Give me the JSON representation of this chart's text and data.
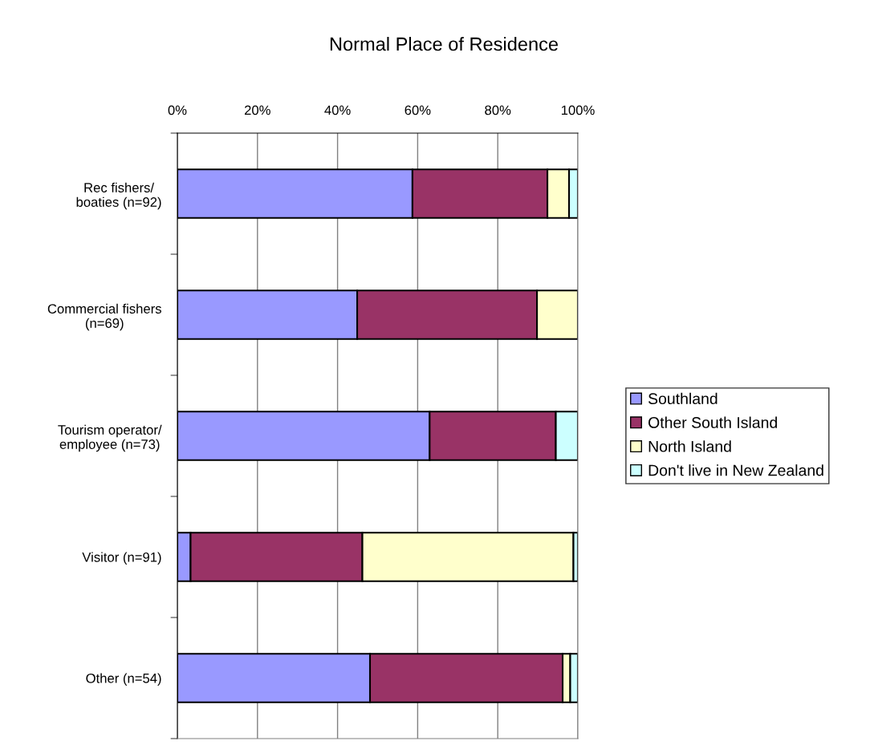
{
  "chart_data": {
    "type": "bar",
    "orientation": "horizontal",
    "stacked": true,
    "title": "Normal Place of Residence",
    "categories": [
      "Rec fishers/\nboaties (n=92)",
      "Commercial fishers\n(n=69)",
      "Tourism operator/\nemployee (n=73)",
      "Visitor (n=91)",
      "Other (n=54)"
    ],
    "series": [
      {
        "name": "Southland",
        "color": "#9999ff",
        "values": [
          58.7,
          44.9,
          63.0,
          3.3,
          48.1
        ]
      },
      {
        "name": "Other South Island",
        "color": "#993366",
        "values": [
          33.7,
          44.9,
          31.5,
          42.9,
          48.1
        ]
      },
      {
        "name": "North Island",
        "color": "#ffffcc",
        "values": [
          5.4,
          10.2,
          null,
          52.7,
          1.9
        ]
      },
      {
        "name": "Don't live in New Zealand",
        "color": "#ccffff",
        "values": [
          2.2,
          null,
          5.5,
          1.1,
          1.9
        ]
      }
    ],
    "xlim": [
      0,
      100
    ],
    "xticks": [
      {
        "value": 0,
        "label": "0%"
      },
      {
        "value": 20,
        "label": "20%"
      },
      {
        "value": 40,
        "label": "40%"
      },
      {
        "value": 60,
        "label": "60%"
      },
      {
        "value": 80,
        "label": "80%"
      },
      {
        "value": 100,
        "label": "100%"
      }
    ],
    "grid": "x",
    "legend": "right"
  }
}
